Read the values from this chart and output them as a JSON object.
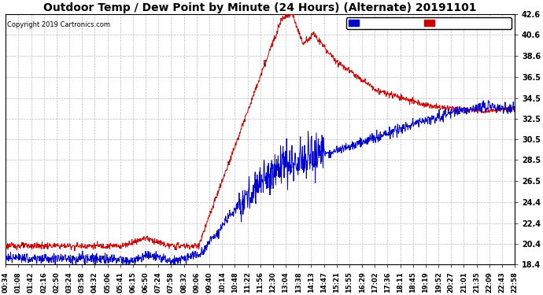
{
  "title": "Outdoor Temp / Dew Point by Minute (24 Hours) (Alternate) 20191101",
  "copyright": "Copyright 2019 Cartronics.com",
  "ylabel_right_ticks": [
    18.4,
    20.4,
    22.4,
    24.4,
    26.5,
    28.5,
    30.5,
    32.5,
    34.5,
    36.5,
    38.6,
    40.6,
    42.6
  ],
  "ymin": 18.4,
  "ymax": 42.6,
  "temp_color": "#cc0000",
  "dew_color": "#0000cc",
  "bg_color": "#ffffff",
  "grid_color": "#bbbbbb",
  "title_fontsize": 10,
  "x_tick_labels": [
    "00:34",
    "01:08",
    "01:42",
    "02:16",
    "02:50",
    "03:24",
    "03:58",
    "04:32",
    "05:06",
    "05:41",
    "06:15",
    "06:50",
    "07:24",
    "07:58",
    "08:32",
    "09:06",
    "09:40",
    "10:14",
    "10:48",
    "11:22",
    "11:56",
    "12:30",
    "13:04",
    "13:38",
    "14:13",
    "14:47",
    "15:21",
    "15:55",
    "16:29",
    "17:02",
    "17:36",
    "18:11",
    "18:45",
    "19:19",
    "19:52",
    "20:27",
    "21:01",
    "21:35",
    "22:09",
    "22:43",
    "22:58"
  ]
}
